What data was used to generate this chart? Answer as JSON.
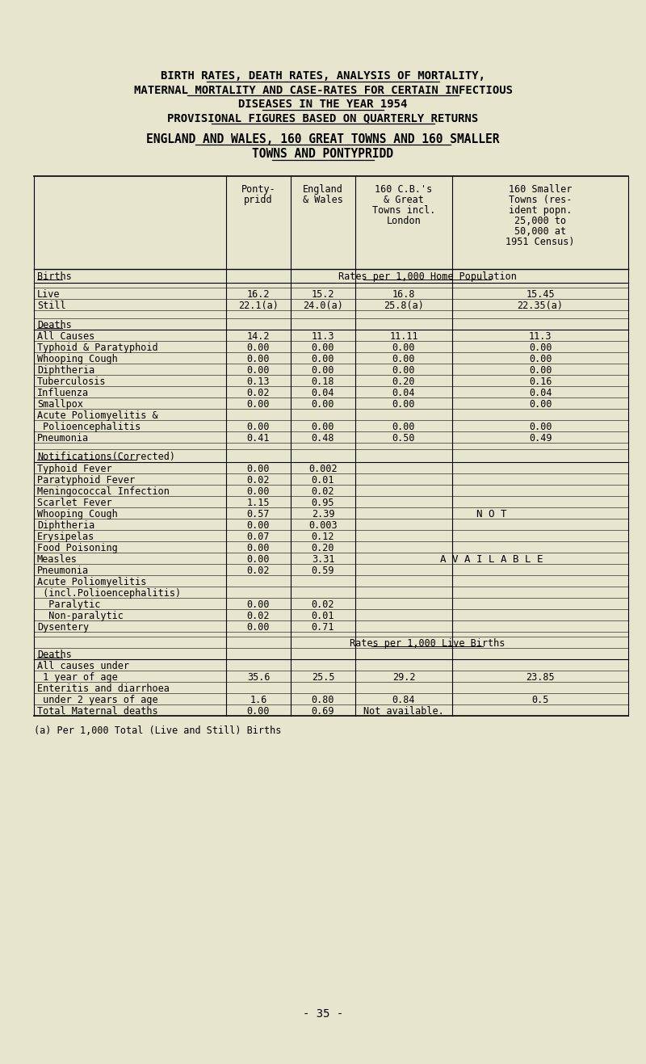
{
  "bg_color": "#e8e5cf",
  "title_lines": [
    "BIRTH RATES, DEATH RATES, ANALYSIS OF MORTALITY,",
    "MATERNAL MORTALITY AND CASE-RATES FOR CERTAIN INFECTIOUS",
    "DISEASES IN THE YEAR 1954",
    "PROVISIONAL FIGURES BASED ON QUARTERLY RETURNS"
  ],
  "subtitle_lines": [
    "ENGLAND AND WALES, 160 GREAT TOWNS AND 160 SMALLER",
    "TOWNS AND PONTYPRIDD"
  ],
  "col_headers_line1": [
    "Ponty-",
    "England",
    "160 C.B.'s",
    "160 Smaller"
  ],
  "col_headers_line2": [
    "pridd",
    "& Wales",
    "& Great",
    "Towns (res-"
  ],
  "col_headers_line3": [
    "",
    "",
    "Towns incl.",
    "ident popn."
  ],
  "col_headers_line4": [
    "",
    "",
    "London",
    "25,000 to"
  ],
  "col_headers_line5": [
    "",
    "",
    "",
    "50,000 at"
  ],
  "col_headers_line6": [
    "",
    "",
    "",
    "1951 Census)"
  ],
  "births_rows": [
    [
      "Live",
      "16.2",
      "15.2",
      "16.8",
      "15.45"
    ],
    [
      "Still",
      "22.1(a)",
      "24.0(a)",
      "25.8(a)",
      "22.35(a)"
    ]
  ],
  "deaths_rows": [
    [
      "All Causes",
      "14.2",
      "11.3",
      "11.11",
      "11.3"
    ],
    [
      "Typhoid & Paratyphoid",
      "0.00",
      "0.00",
      "0.00",
      "0.00"
    ],
    [
      "Whooping Cough",
      "0.00",
      "0.00",
      "0.00",
      "0.00"
    ],
    [
      "Diphtheria",
      "0.00",
      "0.00",
      "0.00",
      "0.00"
    ],
    [
      "Tuberculosis",
      "0.13",
      "0.18",
      "0.20",
      "0.16"
    ],
    [
      "Influenza",
      "0.02",
      "0.04",
      "0.04",
      "0.04"
    ],
    [
      "Smallpox",
      "0.00",
      "0.00",
      "0.00",
      "0.00"
    ],
    [
      "Acute Poliomyelitis &",
      "",
      "",
      "",
      ""
    ],
    [
      " Polioencephalitis",
      "0.00",
      "0.00",
      "0.00",
      "0.00"
    ],
    [
      "Pneumonia",
      "0.41",
      "0.48",
      "0.50",
      "0.49"
    ]
  ],
  "notif_rows": [
    [
      "Typhoid Fever",
      "0.00",
      "0.002"
    ],
    [
      "Paratyphoid Fever",
      "0.02",
      "0.01"
    ],
    [
      "Meningococcal Infection",
      "0.00",
      "0.02"
    ],
    [
      "Scarlet Fever",
      "1.15",
      "0.95"
    ],
    [
      "Whooping Cough",
      "0.57",
      "2.39"
    ],
    [
      "Diphtheria",
      "0.00",
      "0.003"
    ],
    [
      "Erysipelas",
      "0.07",
      "0.12"
    ],
    [
      "Food Poisoning",
      "0.00",
      "0.20"
    ],
    [
      "Measles",
      "0.00",
      "3.31"
    ],
    [
      "Pneumonia",
      "0.02",
      "0.59"
    ],
    [
      "Acute Poliomyelitis",
      "",
      ""
    ],
    [
      " (incl.Polioencephalitis)",
      "",
      ""
    ],
    [
      "  Paralytic",
      "0.00",
      "0.02"
    ],
    [
      "  Non-paralytic",
      "0.02",
      "0.01"
    ],
    [
      "Dysentery",
      "0.00",
      "0.71"
    ]
  ],
  "not_row": 4,
  "avail_row": 8,
  "deaths2_rows": [
    [
      "All causes under",
      "",
      "",
      "",
      ""
    ],
    [
      " 1 year of age",
      "35.6",
      "25.5",
      "29.2",
      "23.85"
    ],
    [
      "Enteritis and diarrhoea",
      "",
      "",
      "",
      ""
    ],
    [
      " under 2 years of age",
      "1.6",
      "0.80",
      "0.84",
      "0.5"
    ],
    [
      "Total Maternal deaths",
      "0.00",
      "0.69",
      "Not available.",
      ""
    ]
  ],
  "footnote": "(a) Per 1,000 Total (Live and Still) Births",
  "page_number": "- 35 -"
}
